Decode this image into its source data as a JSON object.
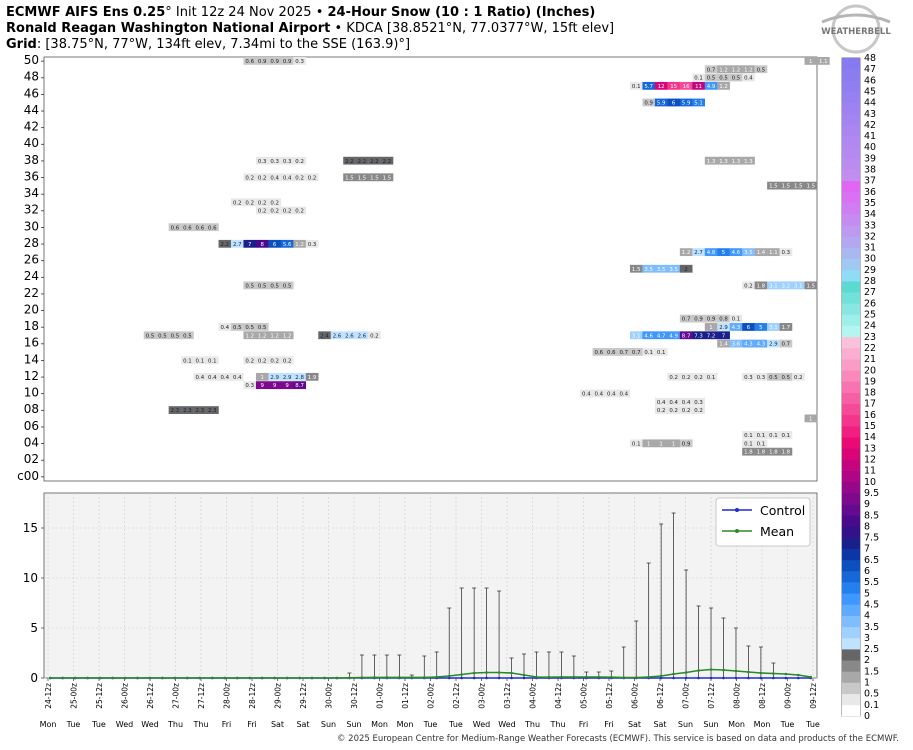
{
  "header": {
    "line1_bold": "ECMWF AIFS Ens 0.25",
    "line1_deg": "°",
    "line1_init": " Init 12z 24 Nov 2025 • ",
    "line1_var": "24-Hour Snow (10 : 1 Ratio) (Inches)",
    "line2_bold": "Ronald Reagan Washington National Airport",
    "line2_rest": " • KDCA [38.8521°N, 77.0377°W, 15ft elev]",
    "line3_bold": "Grid",
    "line3_rest": ": [38.75°N, 77°W, 134ft elev, 7.34mi to the SSE (163.9)°]"
  },
  "logo": {
    "text": "WEATHERBELL"
  },
  "footer": "© 2025 European Centre for Medium-Range Weather Forecasts (ECMWF). This service is based on data and products of the ECMWF.",
  "colors": {
    "mean": "#2a8a2a",
    "control": "#1f2bd0",
    "grid": "#cfcfcf",
    "plot_bg": "#f3f3f3"
  },
  "chart_data": [
    {
      "type": "heatmap",
      "description_rows": "ensemble members c00 and 01-50",
      "y_tick_labels": [
        "c00",
        "02",
        "04",
        "06",
        "08",
        "10",
        "12",
        "14",
        "16",
        "18",
        "20",
        "22",
        "24",
        "26",
        "28",
        "30",
        "32",
        "34",
        "36",
        "38",
        "40",
        "42",
        "44",
        "46",
        "48",
        "50"
      ],
      "colorbar": {
        "labels": [
          "0",
          "0.1",
          "0.5",
          "1",
          "1.5",
          "2",
          "2.5",
          "3",
          "3.5",
          "4",
          "4.5",
          "5",
          "5.5",
          "6",
          "6.5",
          "7",
          "7.5",
          "8",
          "8.5",
          "9",
          "9.5",
          "10",
          "11",
          "12",
          "13",
          "14",
          "15",
          "16",
          "17",
          "18",
          "19",
          "20",
          "21",
          "22",
          "23",
          "24",
          "25",
          "26",
          "27",
          "28",
          "29",
          "30",
          "31",
          "32",
          "33",
          "34",
          "35",
          "36",
          "37",
          "38",
          "39",
          "40",
          "41",
          "42",
          "43",
          "44",
          "45",
          "46",
          "47",
          "48"
        ],
        "colors": [
          "#ffffff",
          "#e8e8e8",
          "#c8c8c8",
          "#a8a8a8",
          "#888888",
          "#666666",
          "#bfe2ff",
          "#9fd0ff",
          "#7fbdff",
          "#5eaaff",
          "#3f97ff",
          "#2480ee",
          "#1668d8",
          "#0c4fbf",
          "#0a36a6",
          "#1a1f8c",
          "#32118a",
          "#4a0a8c",
          "#640a8e",
          "#7d0a8c",
          "#96088a",
          "#ae0686",
          "#c5057f",
          "#d90478",
          "#ea0a76",
          "#f11f80",
          "#f3358c",
          "#f54a98",
          "#f75fa4",
          "#f874b0",
          "#f988bb",
          "#fa9cc6",
          "#fbafd0",
          "#fbc1da",
          "#b3f5f0",
          "#9eefe9",
          "#88e8e1",
          "#72e1d9",
          "#5cdad1",
          "#8fdcf7",
          "#9fc8f2",
          "#a9b8f0",
          "#b3a8ef",
          "#bd99ef",
          "#c68bf0",
          "#cf7ef1",
          "#d872f2",
          "#e067f3",
          "#c18ef0",
          "#bb8cf0",
          "#b58af0",
          "#af88f0",
          "#a986f0",
          "#a384f0",
          "#9d82f0",
          "#9780f0",
          "#917ef0",
          "#8b7cf0",
          "#857af0"
        ]
      },
      "cells": [
        {
          "m": 50,
          "v": [
            0.6,
            0.9,
            0.9,
            0.9,
            0.3
          ],
          "d": 16
        },
        {
          "m": 50,
          "v": [
            1,
            1.1
          ],
          "d": 61
        },
        {
          "m": 49,
          "v": [
            0.7,
            1.2,
            1.2,
            1.2,
            0.5
          ],
          "d": 53
        },
        {
          "m": 48,
          "v": [
            0.1,
            0.5,
            0.5,
            0.5,
            0.4
          ],
          "d": 52
        },
        {
          "m": 47,
          "v": [
            0.1,
            5.7,
            12,
            15,
            16,
            11,
            4.9,
            1.2
          ],
          "d": 47
        },
        {
          "m": 45,
          "v": [
            0.9,
            5.9,
            6,
            5.9,
            5.1
          ],
          "d": 48
        },
        {
          "m": 38,
          "v": [
            0.3,
            0.3,
            0.3,
            0.2
          ],
          "d": 17
        },
        {
          "m": 38,
          "v": [
            2.2,
            2.2,
            2.2,
            2.2
          ],
          "d": 24
        },
        {
          "m": 38,
          "v": [
            1.3,
            1.3,
            1.3,
            1.3
          ],
          "d": 53
        },
        {
          "m": 36,
          "v": [
            0.2,
            0.2,
            0.4,
            0.4,
            0.2,
            0.2
          ],
          "d": 16
        },
        {
          "m": 36,
          "v": [
            1.5,
            1.5,
            1.5,
            1.5
          ],
          "d": 24
        },
        {
          "m": 35,
          "v": [
            1.5,
            1.5,
            1.5,
            1.5
          ],
          "d": 58
        },
        {
          "m": 33,
          "v": [
            0.2,
            0.2,
            0.2,
            0.2
          ],
          "d": 15
        },
        {
          "m": 32,
          "v": [
            0.2,
            0.2,
            0.2,
            0.2
          ],
          "d": 17
        },
        {
          "m": 30,
          "v": [
            0.6,
            0.6,
            0.6,
            0.6
          ],
          "d": 10
        },
        {
          "m": 28,
          "v": [
            2.2,
            2.7,
            7,
            8,
            6,
            5.6,
            1.2,
            0.3
          ],
          "d": 14
        },
        {
          "m": 27,
          "v": [
            1.2,
            2.7,
            4.8,
            5,
            4.6,
            3.5,
            1.4,
            1.1,
            0.3
          ],
          "d": 51
        },
        {
          "m": 25,
          "v": [
            1.5,
            3.5,
            3.5,
            3.5,
            2
          ],
          "d": 47
        },
        {
          "m": 23,
          "v": [
            0.5,
            0.5,
            0.5,
            0.5
          ],
          "d": 16
        },
        {
          "m": 23,
          "v": [
            0.2,
            1.8,
            3.1,
            3.2,
            3.1,
            1.5
          ],
          "d": 56
        },
        {
          "m": 19,
          "v": [
            0.7,
            0.9,
            0.9,
            0.8,
            0.1
          ],
          "d": 51
        },
        {
          "m": 18,
          "v": [
            0.4,
            0.5,
            0.5,
            0.5
          ],
          "d": 14
        },
        {
          "m": 18,
          "v": [
            1,
            2.9,
            4.3,
            6,
            5,
            3.1,
            1.7
          ],
          "d": 53
        },
        {
          "m": 17,
          "v": [
            0.5,
            0.5,
            0.5,
            0.5
          ],
          "d": 8
        },
        {
          "m": 17,
          "v": [
            1.2,
            1.2,
            1.2,
            1.2
          ],
          "d": 16
        },
        {
          "m": 17,
          "v": [
            2.4,
            2.6,
            2.6,
            2.6,
            0.2
          ],
          "d": 22
        },
        {
          "m": 17,
          "v": [
            3.1,
            4.6,
            4.7,
            4.9,
            8.7,
            7.3,
            7.2,
            7
          ],
          "d": 47
        },
        {
          "m": 16,
          "v": [
            1.4,
            3.6,
            4.3,
            4.3,
            2.9,
            0.7
          ],
          "d": 54
        },
        {
          "m": 15,
          "v": [
            0.6,
            0.6,
            0.7,
            0.7,
            0.1,
            0.1
          ],
          "d": 44
        },
        {
          "m": 14,
          "v": [
            0.1,
            0.1,
            0.1
          ],
          "d": 11
        },
        {
          "m": 14,
          "v": [
            0.2,
            0.2,
            0.2,
            0.2
          ],
          "d": 16
        },
        {
          "m": 12,
          "v": [
            0.4,
            0.4,
            0.4,
            0.4
          ],
          "d": 12
        },
        {
          "m": 12,
          "v": [
            1,
            2.9,
            2.9,
            2.8,
            1.9
          ],
          "d": 17
        },
        {
          "m": 12,
          "v": [
            0.2,
            0.2,
            0.2,
            0.1
          ],
          "d": 50
        },
        {
          "m": 12,
          "v": [
            0.3,
            0.3,
            0.5,
            0.5,
            0.2
          ],
          "d": 56
        },
        {
          "m": 11,
          "v": [
            0.3,
            9,
            9,
            9,
            8.7
          ],
          "d": 16
        },
        {
          "m": 10,
          "v": [
            0.4,
            0.4,
            0.4,
            0.4
          ],
          "d": 43
        },
        {
          "m": 9,
          "v": [
            0.4,
            0.4,
            0.4,
            0.3
          ],
          "d": 49
        },
        {
          "m": 8,
          "v": [
            2.3,
            2.3,
            2.3,
            2.3
          ],
          "d": 10
        },
        {
          "m": 8,
          "v": [
            0.2,
            0.2,
            0.2,
            0.2
          ],
          "d": 49
        },
        {
          "m": 7,
          "v": [
            1
          ],
          "d": 61
        },
        {
          "m": 5,
          "v": [
            0.1,
            0.1,
            0.1,
            0.1
          ],
          "d": 56
        },
        {
          "m": 4,
          "v": [
            0.1,
            1,
            1,
            1,
            0.9
          ],
          "d": 47
        },
        {
          "m": 4,
          "v": [
            0.1,
            0.1
          ],
          "d": 56
        },
        {
          "m": 3,
          "v": [
            1.8,
            1.8,
            1.8,
            1.8
          ],
          "d": 56
        }
      ]
    },
    {
      "type": "line",
      "x_tick_labels": [
        "24-12z",
        "25-00z",
        "25-12z",
        "26-00z",
        "26-12z",
        "27-00z",
        "27-12z",
        "28-00z",
        "28-12z",
        "29-00z",
        "29-12z",
        "30-00z",
        "30-12z",
        "01-00z",
        "01-12z",
        "02-00z",
        "02-12z",
        "03-00z",
        "03-12z",
        "04-00z",
        "04-12z",
        "05-00z",
        "05-12z",
        "06-00z",
        "06-12z",
        "07-00z",
        "07-12z",
        "08-00z",
        "08-12z",
        "09-00z",
        "09-12z"
      ],
      "x_day_labels": [
        "Mon",
        "Tue",
        "Tue",
        "Wed",
        "Wed",
        "Thu",
        "Thu",
        "Fri",
        "Fri",
        "Sat",
        "Sat",
        "Sun",
        "Sun",
        "Mon",
        "Mon",
        "Tue",
        "Tue",
        "Wed",
        "Wed",
        "Thu",
        "Thu",
        "Fri",
        "Fri",
        "Sat",
        "Sat",
        "Sun",
        "Sun",
        "Mon",
        "Mon",
        "Tue",
        "Tue"
      ],
      "ylim": [
        0,
        18.5
      ],
      "y_ticks": [
        0,
        5,
        10,
        15
      ],
      "legend": {
        "position": "top-right",
        "items": [
          "Control",
          "Mean"
        ]
      },
      "series": [
        {
          "name": "Control",
          "values": [
            0,
            0,
            0,
            0,
            0,
            0,
            0,
            0,
            0,
            0,
            0,
            0,
            0,
            0,
            0,
            0,
            0,
            0,
            0,
            0,
            0,
            0,
            0,
            0,
            0,
            0,
            0,
            0,
            0,
            0,
            0,
            0,
            0,
            0,
            0,
            0,
            0,
            0,
            0,
            0,
            0,
            0,
            0,
            0,
            0,
            0,
            0,
            0,
            0,
            0,
            0,
            0,
            0,
            0,
            0,
            0,
            0,
            0,
            0,
            0,
            0,
            0
          ]
        },
        {
          "name": "Mean",
          "values": [
            0,
            0,
            0,
            0,
            0,
            0,
            0,
            0,
            0,
            0,
            0,
            0,
            0,
            0,
            0,
            0,
            0,
            0,
            0,
            0,
            0,
            0,
            0,
            0,
            0.02,
            0.05,
            0.06,
            0.06,
            0.06,
            0.06,
            0.06,
            0.1,
            0.2,
            0.35,
            0.5,
            0.55,
            0.55,
            0.5,
            0.3,
            0.1,
            0.08,
            0.1,
            0.1,
            0.1,
            0.1,
            0.08,
            0.05,
            0.05,
            0.1,
            0.2,
            0.4,
            0.55,
            0.75,
            0.85,
            0.8,
            0.7,
            0.6,
            0.5,
            0.45,
            0.4,
            0.3,
            0.1
          ]
        }
      ],
      "max_whiskers": [
        0,
        0,
        0,
        0,
        0,
        0,
        0,
        0,
        0,
        0,
        0,
        0,
        0,
        0,
        0,
        0,
        0,
        0,
        0,
        0,
        0,
        0,
        0,
        0,
        0.5,
        2.3,
        2.3,
        2.3,
        2.3,
        0.3,
        2.2,
        2.6,
        7,
        9,
        9,
        9,
        8.7,
        2,
        2.4,
        2.6,
        2.6,
        2.6,
        2.2,
        0.6,
        0.6,
        0.7,
        3.1,
        5.7,
        11.5,
        15.4,
        16.5,
        10.8,
        7.2,
        7,
        6,
        5,
        3.2,
        3.1,
        1.5,
        0,
        0,
        0
      ]
    }
  ]
}
